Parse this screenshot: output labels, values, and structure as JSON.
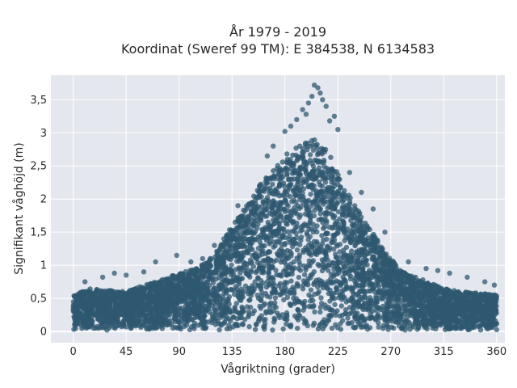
{
  "chart_data": {
    "type": "scatter",
    "title_lines": [
      "År 1979 - 2019",
      "Koordinat (Sweref 99 TM): E 384538, N 6134583"
    ],
    "xlabel": "Vågriktning (grader)",
    "ylabel": "Signifikant våghöjd (m)",
    "xlim": [
      -19,
      367
    ],
    "ylim": [
      -0.17,
      3.87
    ],
    "xticks": [
      0,
      45,
      90,
      135,
      180,
      225,
      270,
      315,
      360
    ],
    "xtick_labels": [
      "0",
      "45",
      "90",
      "135",
      "180",
      "225",
      "270",
      "315",
      "360"
    ],
    "yticks": [
      0,
      0.5,
      1,
      1.5,
      2,
      2.5,
      3,
      3.5
    ],
    "ytick_labels": [
      "0",
      "0,5",
      "1",
      "1,5",
      "2",
      "2,5",
      "3",
      "3,5"
    ],
    "grid": true,
    "colors": {
      "plot_bg": "#e5e7ef",
      "marker": "#2f5870",
      "grid": "#ffffff"
    },
    "envelope": [
      [
        0,
        0.55
      ],
      [
        15,
        0.65
      ],
      [
        30,
        0.62
      ],
      [
        45,
        0.6
      ],
      [
        60,
        0.7
      ],
      [
        75,
        0.78
      ],
      [
        90,
        0.88
      ],
      [
        105,
        0.95
      ],
      [
        120,
        1.15
      ],
      [
        130,
        1.45
      ],
      [
        135,
        1.6
      ],
      [
        145,
        1.85
      ],
      [
        155,
        2.15
      ],
      [
        165,
        2.35
      ],
      [
        175,
        2.55
      ],
      [
        185,
        2.75
      ],
      [
        195,
        2.85
      ],
      [
        205,
        2.9
      ],
      [
        212,
        2.85
      ],
      [
        220,
        2.6
      ],
      [
        230,
        2.2
      ],
      [
        240,
        1.9
      ],
      [
        250,
        1.6
      ],
      [
        260,
        1.35
      ],
      [
        270,
        1.1
      ],
      [
        280,
        0.9
      ],
      [
        295,
        0.8
      ],
      [
        315,
        0.65
      ],
      [
        330,
        0.6
      ],
      [
        345,
        0.58
      ],
      [
        360,
        0.55
      ]
    ],
    "outliers": [
      [
        205,
        3.72
      ],
      [
        208,
        3.68
      ],
      [
        210,
        3.6
      ],
      [
        203,
        3.55
      ],
      [
        212,
        3.5
      ],
      [
        200,
        3.45
      ],
      [
        215,
        3.4
      ],
      [
        195,
        3.35
      ],
      [
        198,
        3.28
      ],
      [
        222,
        3.25
      ],
      [
        190,
        3.2
      ],
      [
        218,
        3.18
      ],
      [
        185,
        3.1
      ],
      [
        225,
        3.05
      ],
      [
        180,
        3.02
      ],
      [
        170,
        2.8
      ],
      [
        165,
        2.65
      ],
      [
        235,
        2.4
      ],
      [
        245,
        2.1
      ],
      [
        255,
        1.85
      ],
      [
        265,
        1.5
      ],
      [
        140,
        1.9
      ],
      [
        128,
        1.4
      ],
      [
        120,
        1.3
      ],
      [
        110,
        1.1
      ],
      [
        100,
        1.05
      ],
      [
        88,
        1.15
      ],
      [
        70,
        1.05
      ],
      [
        60,
        0.9
      ],
      [
        35,
        0.88
      ],
      [
        45,
        0.85
      ],
      [
        25,
        0.82
      ],
      [
        10,
        0.75
      ],
      [
        285,
        1.05
      ],
      [
        300,
        0.95
      ],
      [
        310,
        0.92
      ],
      [
        320,
        0.88
      ],
      [
        335,
        0.82
      ],
      [
        350,
        0.75
      ],
      [
        358,
        0.7
      ]
    ]
  }
}
